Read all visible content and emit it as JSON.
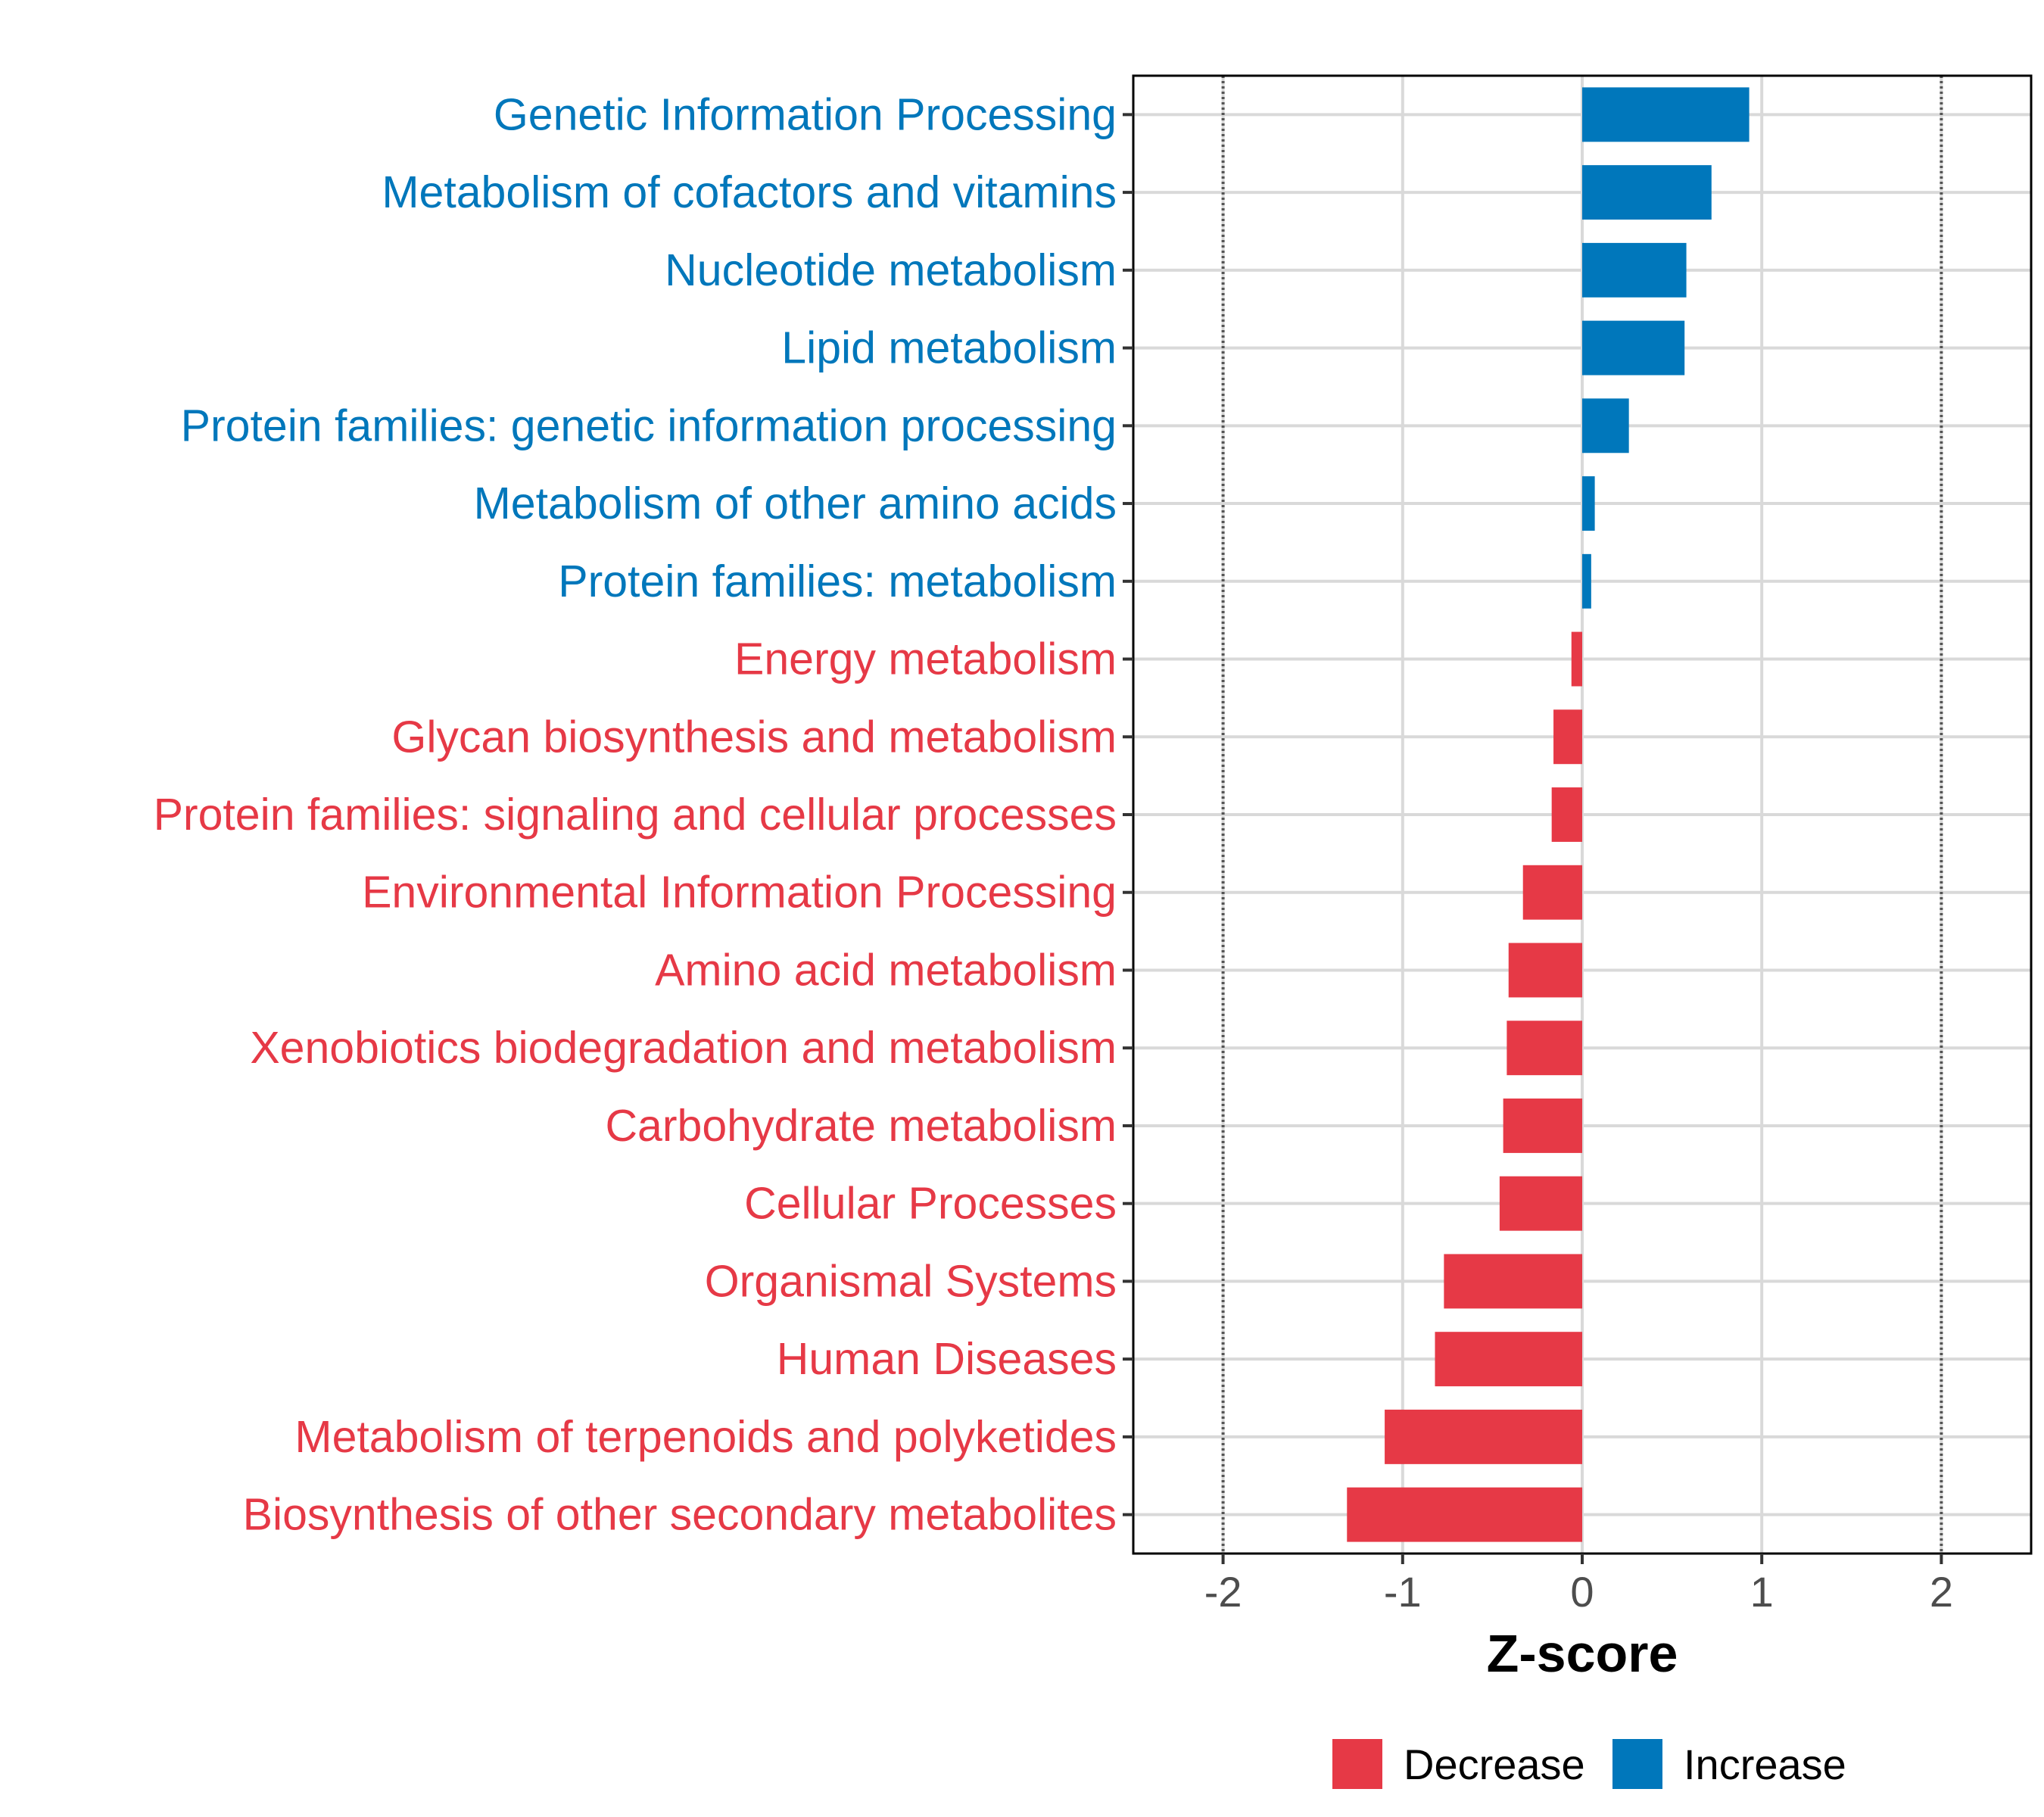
{
  "chart_data": {
    "type": "bar",
    "orientation": "horizontal",
    "title": "",
    "xlabel": "Z-score",
    "ylabel": "",
    "xlim": [
      -2.5,
      2.5
    ],
    "xticks": [
      -2,
      -1,
      0,
      1,
      2
    ],
    "xtick_labels": [
      "-2",
      "-1",
      "0",
      "1",
      "2"
    ],
    "reference_lines": [
      -2,
      2
    ],
    "grid": true,
    "colors": {
      "Increase": "#0077BB",
      "Decrease": "#E63946"
    },
    "categories": [
      "Genetic Information Processing",
      "Metabolism of cofactors and vitamins",
      "Nucleotide metabolism",
      "Lipid metabolism",
      "Protein families: genetic information processing",
      "Metabolism of other amino acids",
      "Protein families: metabolism",
      "Energy metabolism",
      "Glycan biosynthesis and metabolism",
      "Protein families: signaling and cellular processes",
      "Environmental Information Processing",
      "Amino acid metabolism",
      "Xenobiotics biodegradation and metabolism",
      "Carbohydrate metabolism",
      "Cellular Processes",
      "Organismal Systems",
      "Human Diseases",
      "Metabolism of terpenoids and polyketides",
      "Biosynthesis of other secondary metabolites"
    ],
    "values": [
      0.93,
      0.72,
      0.58,
      0.57,
      0.26,
      0.07,
      0.05,
      -0.06,
      -0.16,
      -0.17,
      -0.33,
      -0.41,
      -0.42,
      -0.44,
      -0.46,
      -0.77,
      -0.82,
      -1.1,
      -1.31
    ],
    "groups": [
      "Increase",
      "Increase",
      "Increase",
      "Increase",
      "Increase",
      "Increase",
      "Increase",
      "Decrease",
      "Decrease",
      "Decrease",
      "Decrease",
      "Decrease",
      "Decrease",
      "Decrease",
      "Decrease",
      "Decrease",
      "Decrease",
      "Decrease",
      "Decrease"
    ],
    "legend": {
      "position": "bottom",
      "entries": [
        "Decrease",
        "Increase"
      ]
    }
  }
}
